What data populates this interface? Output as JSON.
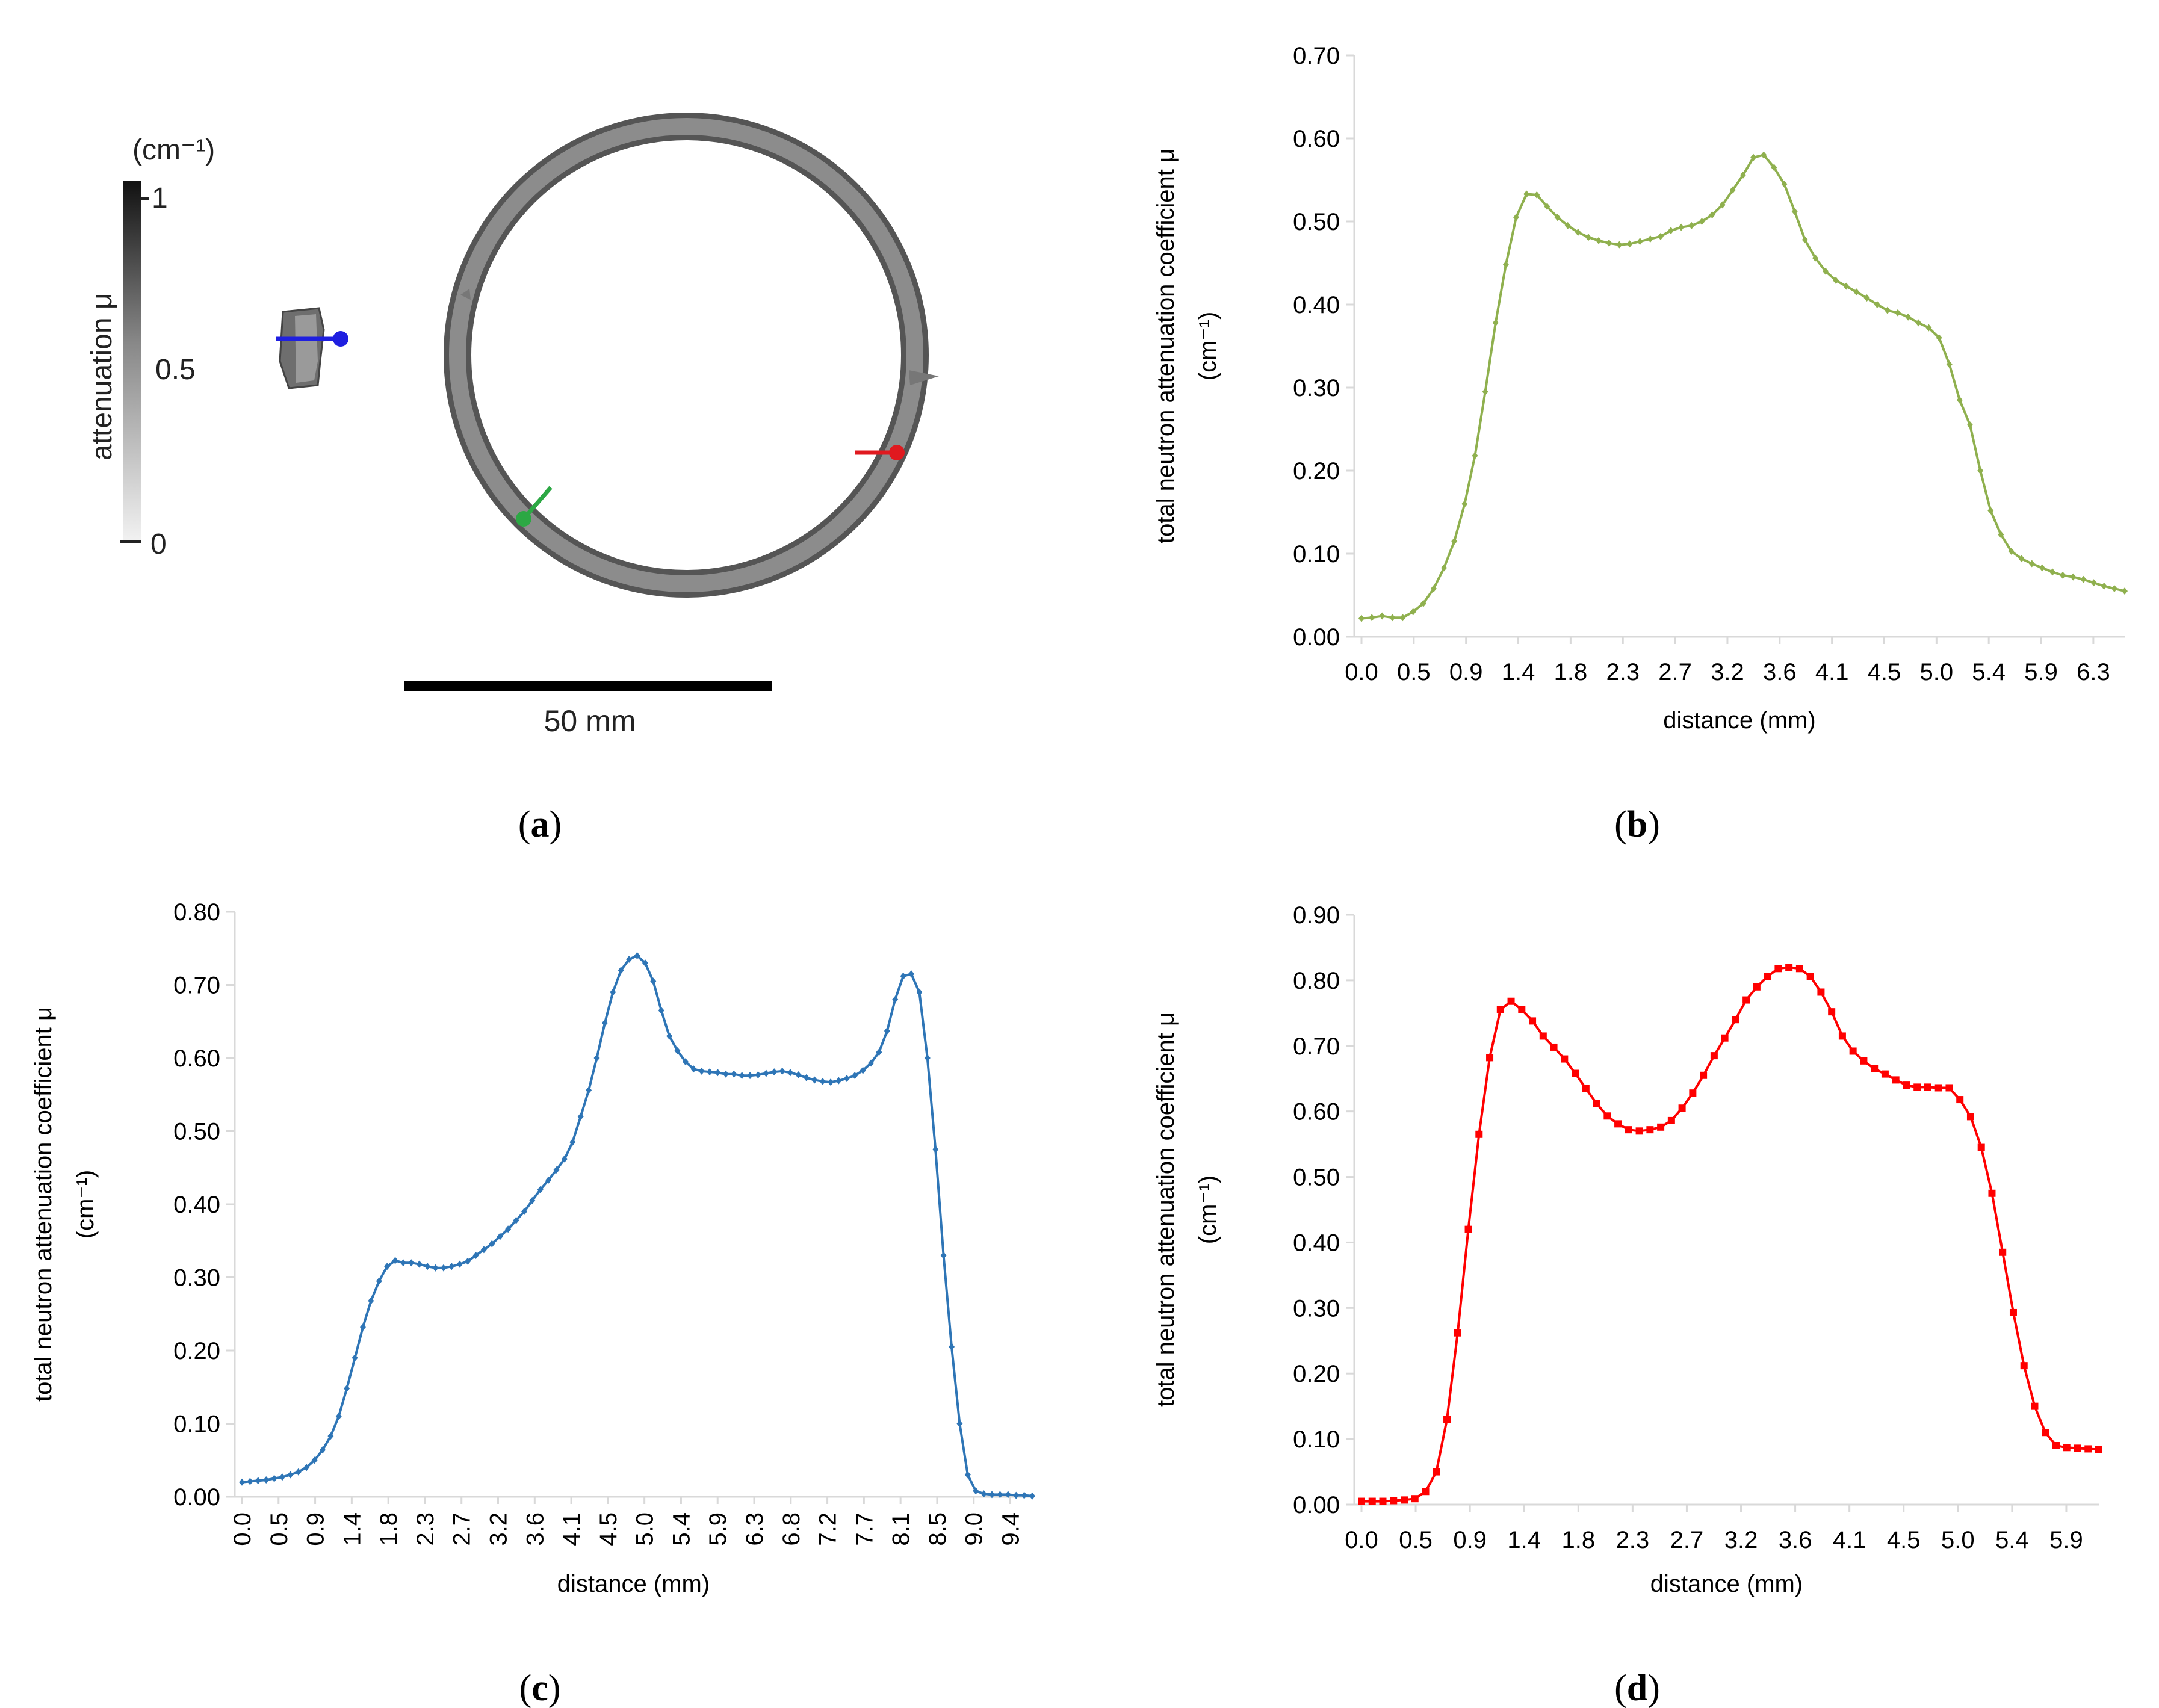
{
  "panel_a": {
    "label": "a",
    "colorbar": {
      "unit": "(cm⁻¹)",
      "title": "attenuation μ",
      "ticks": [
        "1",
        "0.5",
        "0"
      ]
    },
    "scale_bar_label": "50 mm",
    "marker_colors": {
      "blue": "#1f1fe0",
      "red": "#e0191f",
      "green": "#2ca844"
    }
  },
  "chart_data": [
    {
      "id": "b",
      "type": "line",
      "label": "b",
      "color": "#8fb04e",
      "marker": "diamond",
      "xlabel": "distance (mm)",
      "ylabel": "total neutron attenuation coefficient μ",
      "ylabel_unit": "(cm⁻¹)",
      "ylim": [
        0,
        0.7
      ],
      "yticks": [
        "0.00",
        "0.10",
        "0.20",
        "0.30",
        "0.40",
        "0.50",
        "0.60",
        "0.70"
      ],
      "xtick_labels": [
        "0.0",
        "0.5",
        "0.9",
        "1.4",
        "1.8",
        "2.3",
        "2.7",
        "3.2",
        "3.6",
        "4.1",
        "4.5",
        "5.0",
        "5.4",
        "5.9",
        "6.3"
      ],
      "x_rotated": false,
      "values": [
        0.022,
        0.023,
        0.025,
        0.023,
        0.023,
        0.03,
        0.04,
        0.058,
        0.083,
        0.115,
        0.16,
        0.218,
        0.295,
        0.378,
        0.448,
        0.505,
        0.533,
        0.532,
        0.518,
        0.505,
        0.495,
        0.487,
        0.481,
        0.477,
        0.474,
        0.472,
        0.473,
        0.476,
        0.479,
        0.482,
        0.489,
        0.493,
        0.495,
        0.5,
        0.508,
        0.52,
        0.538,
        0.556,
        0.577,
        0.58,
        0.565,
        0.545,
        0.512,
        0.478,
        0.456,
        0.44,
        0.429,
        0.422,
        0.415,
        0.408,
        0.4,
        0.393,
        0.39,
        0.385,
        0.378,
        0.372,
        0.36,
        0.328,
        0.285,
        0.255,
        0.2,
        0.152,
        0.123,
        0.103,
        0.094,
        0.088,
        0.083,
        0.078,
        0.074,
        0.072,
        0.069,
        0.065,
        0.061,
        0.058,
        0.055
      ]
    },
    {
      "id": "c",
      "type": "line",
      "label": "c",
      "color": "#2e75b6",
      "marker": "diamond",
      "xlabel": "distance (mm)",
      "ylabel": "total neutron attenuation coefficient μ",
      "ylabel_unit": "(cm⁻¹)",
      "ylim": [
        0,
        0.8
      ],
      "yticks": [
        "0.00",
        "0.10",
        "0.20",
        "0.30",
        "0.40",
        "0.50",
        "0.60",
        "0.70",
        "0.80"
      ],
      "xtick_labels": [
        "0.0",
        "0.5",
        "0.9",
        "1.4",
        "1.8",
        "2.3",
        "2.7",
        "3.2",
        "3.6",
        "4.1",
        "4.5",
        "5.0",
        "5.4",
        "5.9",
        "6.3",
        "6.8",
        "7.2",
        "7.7",
        "8.1",
        "8.5",
        "9.0",
        "9.4"
      ],
      "x_rotated": true,
      "values": [
        0.02,
        0.021,
        0.022,
        0.023,
        0.025,
        0.027,
        0.03,
        0.034,
        0.04,
        0.05,
        0.064,
        0.083,
        0.11,
        0.148,
        0.19,
        0.232,
        0.268,
        0.295,
        0.315,
        0.323,
        0.32,
        0.32,
        0.318,
        0.315,
        0.313,
        0.313,
        0.315,
        0.318,
        0.322,
        0.33,
        0.338,
        0.346,
        0.356,
        0.366,
        0.378,
        0.39,
        0.405,
        0.42,
        0.433,
        0.447,
        0.462,
        0.485,
        0.52,
        0.556,
        0.6,
        0.648,
        0.69,
        0.72,
        0.735,
        0.74,
        0.73,
        0.705,
        0.665,
        0.63,
        0.61,
        0.595,
        0.585,
        0.582,
        0.581,
        0.58,
        0.578,
        0.578,
        0.576,
        0.576,
        0.577,
        0.579,
        0.581,
        0.582,
        0.58,
        0.577,
        0.573,
        0.57,
        0.568,
        0.567,
        0.569,
        0.572,
        0.576,
        0.583,
        0.593,
        0.608,
        0.637,
        0.68,
        0.712,
        0.715,
        0.69,
        0.6,
        0.475,
        0.33,
        0.205,
        0.1,
        0.03,
        0.008,
        0.004,
        0.003,
        0.003,
        0.003,
        0.002,
        0.002,
        0.001
      ]
    },
    {
      "id": "d",
      "type": "line",
      "label": "d",
      "color": "#ff0000",
      "marker": "square",
      "xlabel": "distance (mm)",
      "ylabel": "total neutron attenuation coefficient μ",
      "ylabel_unit": "(cm⁻¹)",
      "ylim": [
        0,
        0.9
      ],
      "yticks": [
        "0.00",
        "0.10",
        "0.20",
        "0.30",
        "0.40",
        "0.50",
        "0.60",
        "0.70",
        "0.80",
        "0.90"
      ],
      "xtick_labels": [
        "0.0",
        "0.5",
        "0.9",
        "1.4",
        "1.8",
        "2.3",
        "2.7",
        "3.2",
        "3.6",
        "4.1",
        "4.5",
        "5.0",
        "5.4",
        "5.9"
      ],
      "x_rotated": false,
      "values": [
        0.005,
        0.005,
        0.005,
        0.006,
        0.007,
        0.009,
        0.02,
        0.05,
        0.13,
        0.262,
        0.42,
        0.565,
        0.682,
        0.755,
        0.768,
        0.755,
        0.738,
        0.715,
        0.698,
        0.68,
        0.658,
        0.635,
        0.612,
        0.593,
        0.581,
        0.572,
        0.57,
        0.572,
        0.576,
        0.586,
        0.605,
        0.628,
        0.655,
        0.685,
        0.712,
        0.74,
        0.77,
        0.79,
        0.806,
        0.818,
        0.82,
        0.818,
        0.806,
        0.782,
        0.752,
        0.715,
        0.692,
        0.677,
        0.665,
        0.657,
        0.648,
        0.64,
        0.637,
        0.637,
        0.636,
        0.636,
        0.618,
        0.592,
        0.545,
        0.475,
        0.385,
        0.293,
        0.212,
        0.15,
        0.11,
        0.09,
        0.087,
        0.086,
        0.085,
        0.084
      ]
    }
  ]
}
